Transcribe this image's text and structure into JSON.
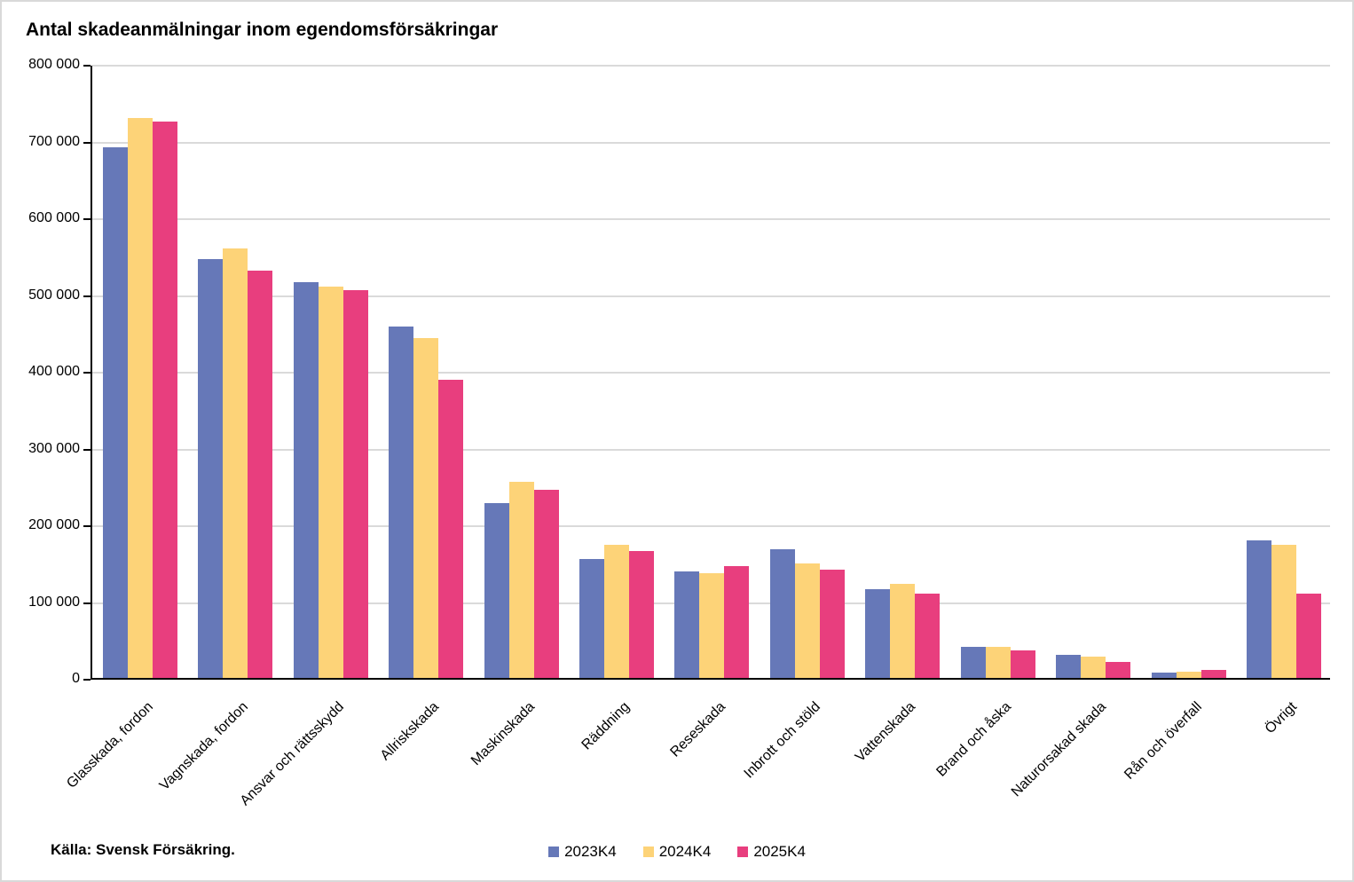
{
  "title": "Antal skadeanmälningar inom egendomsförsäkringar",
  "source": "Källa: Svensk Försäkring.",
  "colors": {
    "series_2023K4": "#6678B8",
    "series_2024K4": "#FDD378",
    "series_2025K4": "#E83E7E",
    "gridline": "#DADADA",
    "axis": "#000000",
    "frame_border": "#D9D9D9"
  },
  "chart_data": {
    "type": "bar",
    "title": "Antal skadeanmälningar inom egendomsförsäkringar",
    "categories": [
      "Glasskada, fordon",
      "Vagnskada, fordon",
      "Ansvar och rättsskydd",
      "Allriskskada",
      "Maskinskada",
      "Räddning",
      "Reseskada",
      "Inbrott och stöld",
      "Vattenskada",
      "Brand och åska",
      "Naturorsakad skada",
      "Rån och överfall",
      "Övrigt"
    ],
    "series": [
      {
        "name": "2023K4",
        "color": "#6678B8",
        "values": [
          691000,
          546000,
          516000,
          458000,
          228000,
          155000,
          139000,
          168000,
          116000,
          40000,
          30000,
          7000,
          179000
        ]
      },
      {
        "name": "2024K4",
        "color": "#FDD378",
        "values": [
          730000,
          559000,
          510000,
          443000,
          256000,
          173000,
          136000,
          149000,
          122000,
          41000,
          28000,
          8000,
          173000
        ]
      },
      {
        "name": "2025K4",
        "color": "#E83E7E",
        "values": [
          725000,
          531000,
          505000,
          388000,
          245000,
          165000,
          146000,
          141000,
          110000,
          36000,
          21000,
          10000,
          110000
        ]
      }
    ],
    "xlabel": "",
    "ylabel": "",
    "ylim": [
      0,
      800000
    ],
    "ytick_step": 100000,
    "ytick_labels": [
      "0",
      "100 000",
      "200 000",
      "300 000",
      "400 000",
      "500 000",
      "600 000",
      "700 000",
      "800 000"
    ],
    "grid": true,
    "legend_position": "bottom-center",
    "source": "Källa: Svensk Försäkring."
  }
}
